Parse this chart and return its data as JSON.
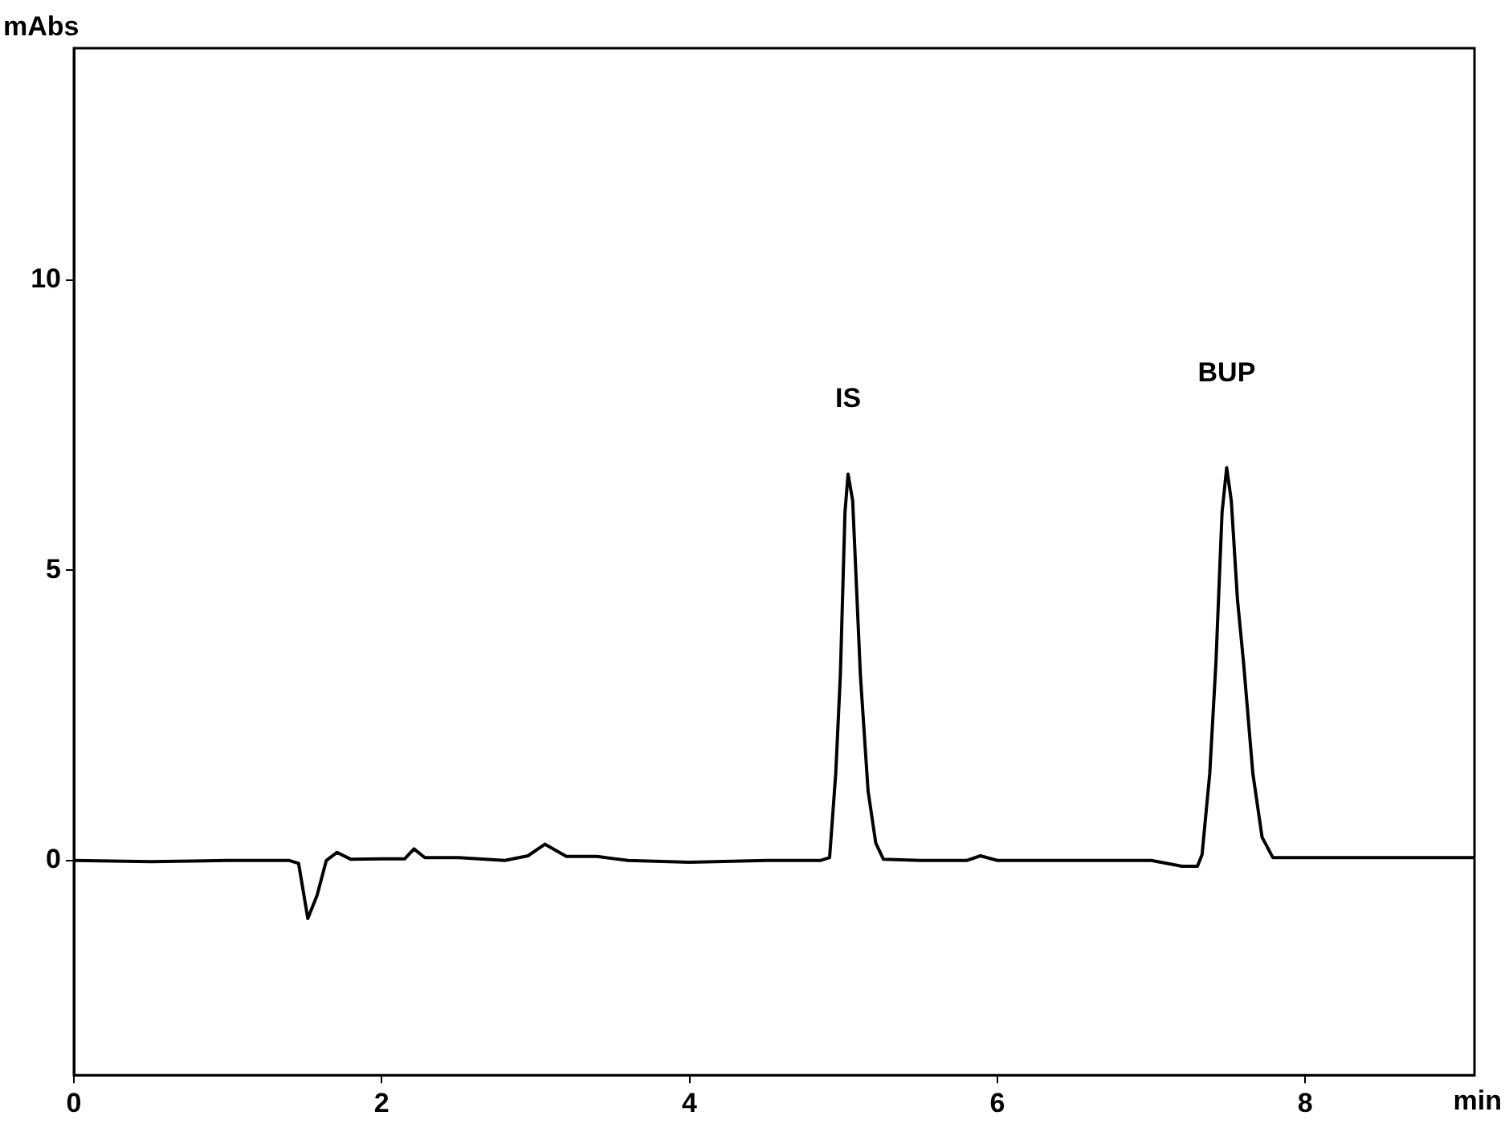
{
  "chart_data": {
    "type": "line",
    "xlabel": "min",
    "ylabel": "mAbs",
    "x": [
      0,
      0.5,
      1.0,
      1.4,
      1.46,
      1.52,
      1.58,
      1.64,
      1.71,
      1.8,
      2.0,
      2.15,
      2.21,
      2.28,
      2.5,
      2.8,
      2.95,
      3.06,
      3.2,
      3.4,
      3.6,
      4.0,
      4.5,
      4.85,
      4.91,
      4.95,
      4.98,
      5.01,
      5.03,
      5.06,
      5.11,
      5.16,
      5.21,
      5.26,
      5.5,
      5.8,
      5.89,
      6.0,
      6.5,
      7.0,
      7.2,
      7.3,
      7.33,
      7.38,
      7.42,
      7.46,
      7.49,
      7.52,
      7.56,
      7.6,
      7.66,
      7.72,
      7.79,
      8.0,
      8.5,
      9.1
    ],
    "series": [
      {
        "color": "#000000",
        "values": [
          0,
          -0.02,
          0,
          0,
          -0.05,
          -1.0,
          -0.6,
          0,
          0.14,
          0.02,
          0.03,
          0.03,
          0.2,
          0.05,
          0.05,
          0,
          0.08,
          0.28,
          0.07,
          0.07,
          0,
          -0.03,
          0,
          0,
          0.05,
          1.5,
          3.2,
          6.0,
          6.66,
          6.2,
          3.2,
          1.2,
          0.3,
          0.02,
          0,
          0,
          0.08,
          0,
          0,
          0,
          -0.1,
          -0.1,
          0.1,
          1.5,
          3.4,
          6.0,
          6.77,
          6.2,
          4.5,
          3.4,
          1.5,
          0.4,
          0.05,
          0.05,
          0.05,
          0.05
        ]
      }
    ],
    "xlim": [
      0,
      9.1
    ],
    "xticks": [
      0,
      2,
      4,
      6,
      8
    ],
    "ylim": [
      -3.7,
      14
    ],
    "yticks": [
      0,
      5,
      10
    ],
    "grid": false,
    "annotations": [
      {
        "text": "IS",
        "x": 5.03,
        "y": 6.66
      },
      {
        "text": "BUP",
        "x": 7.49,
        "y": 6.77
      }
    ]
  }
}
